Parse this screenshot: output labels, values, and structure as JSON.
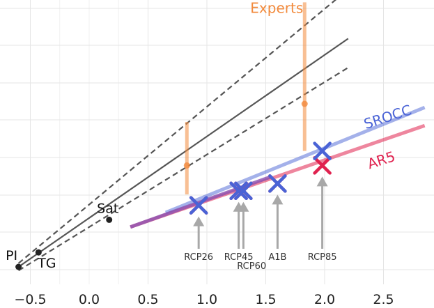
{
  "chart_data": {
    "type": "line",
    "title": "",
    "xlabel": "",
    "ylabel": "",
    "xlim": [
      -0.65,
      2.85
    ],
    "ylim": [
      -0.05,
      0.78
    ],
    "x_ticks": [
      -0.5,
      0.0,
      0.5,
      1.0,
      1.5,
      2.0,
      2.5
    ],
    "x_tick_labels": [
      "−0.5",
      "0.0",
      "0.5",
      "1.0",
      "1.5",
      "2.0",
      "2.5"
    ],
    "grid": true,
    "colors": {
      "grid": "#e5e5e5",
      "experts": "#f28a3c",
      "srocc": "#4a63d6",
      "ar5": "#e0224f",
      "overlap": "#8a4fb0",
      "fit": "#555555",
      "arrow": "#a8a8a8",
      "point": "#222222"
    },
    "observations": [
      {
        "label": "PI",
        "x": -0.6,
        "y": 0.0
      },
      {
        "label": "TG",
        "x": -0.43,
        "y": 0.04
      },
      {
        "label": "Sat",
        "x": 0.17,
        "y": 0.13
      }
    ],
    "fit": {
      "x_range": [
        -0.6,
        2.2
      ],
      "central": {
        "intercept": 0.0,
        "slope": 0.225
      },
      "upper": {
        "intercept": 0.01,
        "slope": 0.27
      },
      "lower": {
        "intercept": -0.01,
        "slope": 0.2
      }
    },
    "series": [
      {
        "name": "SROCC",
        "x": [
          0.65,
          2.85
        ],
        "y": [
          0.15,
          0.44
        ]
      },
      {
        "name": "AR5",
        "x": [
          0.35,
          2.85
        ],
        "y": [
          0.11,
          0.39
        ]
      }
    ],
    "experts": {
      "label": "Experts",
      "points": [
        {
          "x": 0.83,
          "y": 0.28,
          "low": 0.2,
          "high": 0.4
        },
        {
          "x": 1.83,
          "y": 0.45,
          "low": 0.32,
          "high": 0.73
        }
      ]
    },
    "scenarios": [
      {
        "label": "RCP26",
        "x": 0.93,
        "srocc_y": 0.17,
        "ar5_y": 0.17,
        "label_x": 0.93
      },
      {
        "label": "RCP45",
        "x": 1.27,
        "srocc_y": 0.21,
        "ar5_y": 0.21,
        "label_x": 1.27
      },
      {
        "label": "RCP60",
        "x": 1.31,
        "srocc_y": 0.21,
        "ar5_y": 0.21,
        "label_x": 1.38
      },
      {
        "label": "A1B",
        "x": 1.6,
        "srocc_y": 0.23,
        "ar5_y": 0.23,
        "label_x": 1.6
      },
      {
        "label": "RCP85",
        "x": 1.98,
        "srocc_y": 0.32,
        "ar5_y": 0.28,
        "label_x": 1.98
      }
    ]
  }
}
